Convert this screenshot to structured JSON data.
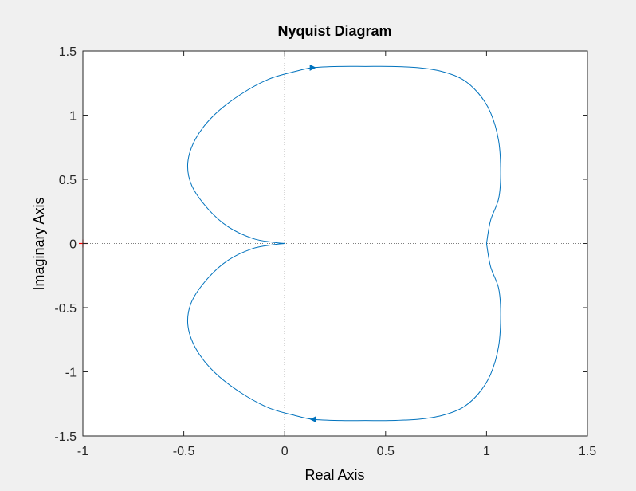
{
  "chart_data": {
    "type": "line",
    "title": "Nyquist Diagram",
    "xlabel": "Real Axis",
    "ylabel": "Imaginary Axis",
    "xlim": [
      -1,
      1.5
    ],
    "ylim": [
      -1.5,
      1.5
    ],
    "xticks": [
      "-1",
      "-0.5",
      "0",
      "0.5",
      "1",
      "1.5"
    ],
    "yticks": [
      "1.5",
      "1",
      "0.5",
      "0",
      "-0.5",
      "-1",
      "-1.5"
    ],
    "grid": false,
    "line_color": "#0072bd",
    "critical_point_color": "#ff0000",
    "critical_point": [
      -1,
      0
    ],
    "series": [
      {
        "x": [
          1.0,
          1.02,
          1.06,
          1.07,
          1.06,
          1.02,
          0.96,
          0.88,
          0.78,
          0.66,
          0.52,
          0.4,
          0.28,
          0.14,
          0.05,
          -0.08,
          -0.22,
          -0.35,
          -0.44,
          -0.48,
          -0.46,
          -0.38,
          -0.28,
          -0.16,
          -0.06,
          0.0
        ],
        "y": [
          0.0,
          0.18,
          0.35,
          0.55,
          0.8,
          1.02,
          1.17,
          1.28,
          1.34,
          1.37,
          1.38,
          1.38,
          1.38,
          1.37,
          1.34,
          1.28,
          1.16,
          1.0,
          0.82,
          0.63,
          0.45,
          0.27,
          0.13,
          0.04,
          0.01,
          0.0
        ]
      }
    ],
    "arrows": [
      {
        "x": 0.14,
        "y": 1.37,
        "direction": "right"
      },
      {
        "x": 0.14,
        "y": -1.37,
        "direction": "left"
      }
    ]
  }
}
